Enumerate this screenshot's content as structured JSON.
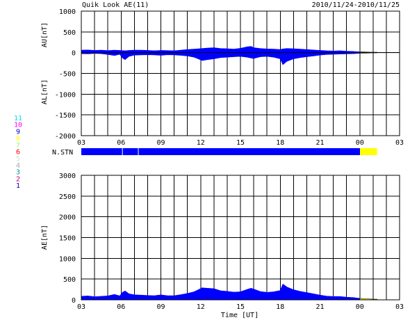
{
  "header": {
    "title": "Quik Look AE(11)",
    "date_range": "2010/11/24-2010/11/25"
  },
  "colors": {
    "data": "#0000ff",
    "provisional": "#ffff00",
    "grid": "#000000",
    "background": "#ffffff"
  },
  "station_legend": [
    {
      "label": "11",
      "color": "#00e0e0"
    },
    {
      "label": "10",
      "color": "#ff00ff"
    },
    {
      "label": "9",
      "color": "#0000cc"
    },
    {
      "label": "8",
      "color": "#ffff00"
    },
    {
      "label": "7",
      "color": "#88ff88"
    },
    {
      "label": "6",
      "color": "#ff0000"
    },
    {
      "label": "5",
      "color": "#dddddd"
    },
    {
      "label": "4",
      "color": "#aaaaaa"
    },
    {
      "label": "3",
      "color": "#009999"
    },
    {
      "label": "2",
      "color": "#cc0066"
    },
    {
      "label": "1",
      "color": "#0000aa"
    }
  ],
  "chart_data": [
    {
      "type": "area",
      "panel": "AU-AL",
      "ylabel_upper": "AU[nT]",
      "ylabel_lower": "AL[nT]",
      "ylim": [
        -2000,
        1000
      ],
      "yticks": [
        "1000",
        "500",
        "0",
        "-500",
        "-1000",
        "-1500",
        "-2000"
      ],
      "xlim_hours": [
        3,
        27
      ],
      "xticks": [
        "03",
        "06",
        "09",
        "12",
        "15",
        "18",
        "21",
        "00",
        "03"
      ],
      "grid": true,
      "x_hours": [
        3.0,
        3.5,
        4.0,
        4.5,
        5.0,
        5.5,
        5.9,
        6.1,
        6.3,
        6.6,
        7.0,
        7.5,
        8.0,
        8.5,
        9.0,
        9.5,
        10.0,
        10.5,
        11.0,
        11.5,
        11.9,
        12.1,
        12.5,
        13.0,
        13.5,
        14.0,
        14.5,
        15.0,
        15.5,
        15.8,
        16.0,
        16.5,
        17.0,
        17.5,
        18.0,
        18.2,
        18.5,
        19.0,
        19.5,
        20.0,
        20.5,
        21.0,
        21.5,
        22.0,
        22.5,
        23.0,
        23.5,
        24.0,
        24.5,
        25.0,
        25.3
      ],
      "series": [
        {
          "name": "AU",
          "values": [
            60,
            65,
            55,
            60,
            50,
            60,
            55,
            50,
            45,
            55,
            60,
            60,
            55,
            45,
            55,
            50,
            45,
            60,
            75,
            85,
            95,
            100,
            110,
            120,
            100,
            95,
            85,
            105,
            140,
            150,
            120,
            100,
            90,
            85,
            75,
            90,
            100,
            95,
            85,
            75,
            65,
            55,
            45,
            40,
            45,
            35,
            30,
            20,
            15,
            10,
            10
          ]
        },
        {
          "name": "AL",
          "values": [
            -25,
            -30,
            -20,
            -25,
            -45,
            -70,
            -40,
            -130,
            -170,
            -90,
            -60,
            -55,
            -50,
            -55,
            -65,
            -50,
            -55,
            -65,
            -80,
            -110,
            -160,
            -190,
            -170,
            -150,
            -120,
            -110,
            -100,
            -90,
            -110,
            -130,
            -140,
            -100,
            -90,
            -110,
            -150,
            -290,
            -210,
            -150,
            -120,
            -100,
            -80,
            -60,
            -45,
            -40,
            -35,
            -30,
            -25,
            -15,
            -10,
            -5,
            -5
          ]
        }
      ],
      "provisional_from_hour": 24.0
    },
    {
      "type": "area",
      "panel": "AE",
      "ylabel": "AE[nT]",
      "xlabel": "Time [UT]",
      "ylim": [
        0,
        3000
      ],
      "yticks": [
        "3000",
        "2500",
        "2000",
        "1500",
        "1000",
        "500",
        "0"
      ],
      "xlim_hours": [
        3,
        27
      ],
      "xticks": [
        "03",
        "06",
        "09",
        "12",
        "15",
        "18",
        "21",
        "00",
        "03"
      ],
      "grid": true,
      "x_hours": [
        3.0,
        3.5,
        4.0,
        4.5,
        5.0,
        5.5,
        5.9,
        6.1,
        6.3,
        6.6,
        7.0,
        7.5,
        8.0,
        8.5,
        9.0,
        9.5,
        10.0,
        10.5,
        11.0,
        11.5,
        11.9,
        12.1,
        12.5,
        13.0,
        13.5,
        14.0,
        14.5,
        15.0,
        15.5,
        15.8,
        16.0,
        16.5,
        17.0,
        17.5,
        18.0,
        18.2,
        18.5,
        19.0,
        19.5,
        20.0,
        20.5,
        21.0,
        21.5,
        22.0,
        22.5,
        23.0,
        23.5,
        24.0,
        24.5,
        25.0,
        25.3
      ],
      "series": [
        {
          "name": "AE",
          "values": [
            85,
            95,
            75,
            85,
            95,
            130,
            95,
            180,
            215,
            145,
            120,
            115,
            105,
            100,
            120,
            100,
            100,
            125,
            155,
            195,
            255,
            290,
            280,
            270,
            220,
            205,
            185,
            195,
            250,
            280,
            260,
            200,
            180,
            195,
            225,
            380,
            310,
            245,
            205,
            175,
            145,
            115,
            90,
            80,
            80,
            65,
            55,
            35,
            25,
            15,
            15
          ]
        }
      ],
      "provisional_from_hour": 24.0
    }
  ],
  "station_count_bar": {
    "label": "N.STN",
    "segments": [
      {
        "from_hour": 3.0,
        "to_hour": 24.0,
        "color": "#0000ff"
      },
      {
        "from_hour": 24.0,
        "to_hour": 25.3,
        "color": "#ffff00"
      }
    ],
    "dividers_hours": [
      6.1,
      7.3
    ]
  }
}
